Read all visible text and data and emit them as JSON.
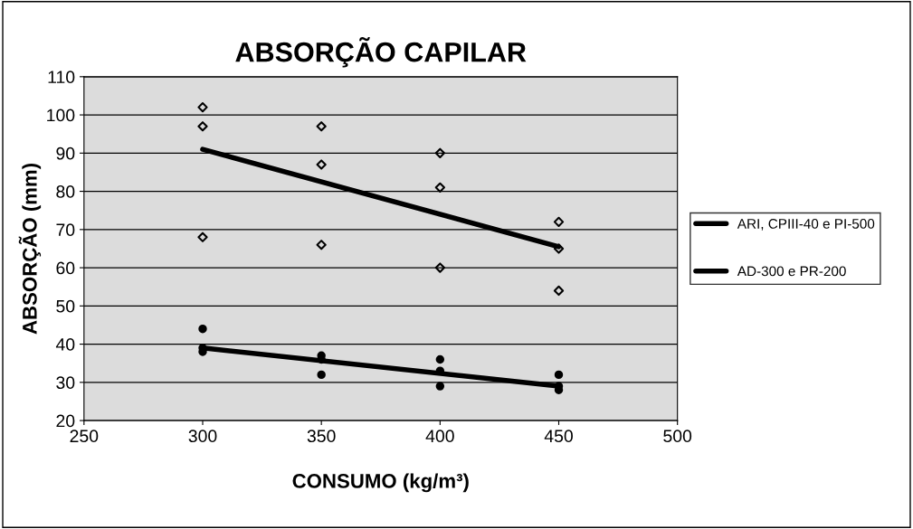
{
  "chart_data": {
    "type": "scatter",
    "title": "ABSORÇÃO CAPILAR",
    "xlabel": "CONSUMO (kg/m³)",
    "ylabel": "ABSORÇÃO (mm)",
    "xlim": [
      250,
      500
    ],
    "xticks": [
      250,
      300,
      350,
      400,
      450,
      500
    ],
    "ylim": [
      20,
      110
    ],
    "yticks": [
      20,
      30,
      40,
      50,
      60,
      70,
      80,
      90,
      100,
      110
    ],
    "grid": "y",
    "legend": "right",
    "series": [
      {
        "marker": "diamond",
        "color": "#000000",
        "x": [
          300,
          300,
          300,
          350,
          350,
          350,
          400,
          400,
          400,
          450,
          450,
          450
        ],
        "values": [
          102,
          97,
          68,
          97,
          87,
          66,
          90,
          81,
          60,
          72,
          65,
          54
        ]
      },
      {
        "marker": "circle",
        "color": "#000000",
        "x": [
          300,
          300,
          300,
          350,
          350,
          350,
          400,
          400,
          400,
          450,
          450,
          450
        ],
        "values": [
          44,
          39,
          38,
          37,
          36,
          32,
          36,
          33,
          29,
          32,
          29,
          28
        ]
      },
      {
        "type": "line",
        "name": "ARI, CPIII-40 e PI-500",
        "color": "#000000",
        "x": [
          300,
          450
        ],
        "values": [
          91,
          65.5
        ]
      },
      {
        "type": "line",
        "name": "AD-300 e PR-200",
        "color": "#000000",
        "x": [
          300,
          450
        ],
        "values": [
          39,
          29
        ]
      }
    ]
  }
}
